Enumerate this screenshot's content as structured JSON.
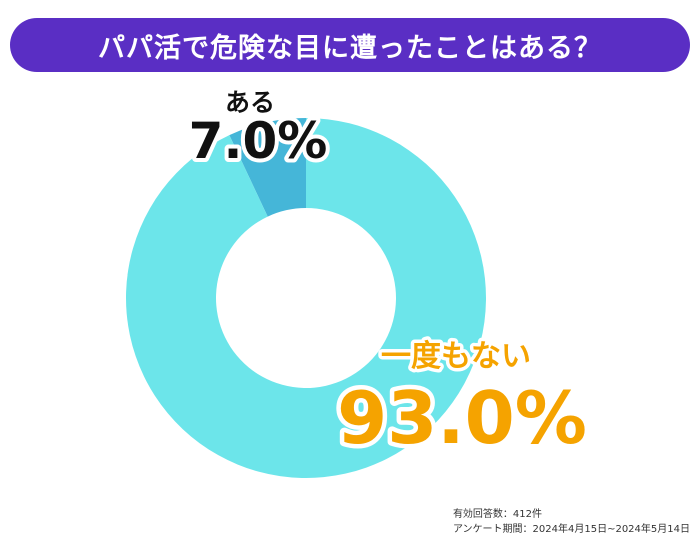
{
  "title": "パパ活で危険な目に遭ったことはある？",
  "colors": {
    "title_bg": "#5a2ec4",
    "slice_yes": "#45b6d8",
    "slice_no": "#6ce5ea",
    "label_yes": "#111111",
    "label_no": "#f5a300"
  },
  "chart_data": {
    "type": "pie",
    "donut": true,
    "slices": [
      {
        "label": "ある",
        "value": 7.0,
        "value_label": "7.0%"
      },
      {
        "label": "一度もない",
        "value": 93.0,
        "value_label": "93.0%"
      }
    ]
  },
  "footnote": {
    "respondents": "有効回答数：412件",
    "period": "アンケート期間：2024年4月15日~2024年5月14日"
  }
}
